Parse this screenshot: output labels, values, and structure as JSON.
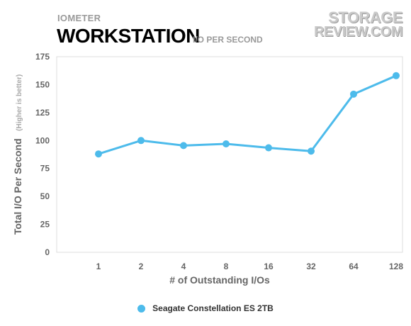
{
  "header": {
    "kicker": "IOMETER",
    "title": "WORKSTATION",
    "subtitle": "I/O PER SECOND"
  },
  "logo": {
    "line1": "STORAGE",
    "line2": "REVIEW.COM"
  },
  "colors": {
    "series": "#4dbbeb",
    "axis_text": "#666666",
    "grid": "#e0e0e0"
  },
  "chart_data": {
    "type": "line",
    "categories": [
      "1",
      "2",
      "4",
      "8",
      "16",
      "32",
      "64",
      "128"
    ],
    "series": [
      {
        "name": "Seagate Constellation ES 2TB",
        "values": [
          88,
          100,
          95.5,
          97,
          93.5,
          90.5,
          141.5,
          158
        ]
      }
    ],
    "xlabel": "# of Outstanding I/Os",
    "ylabel": "Total I/O Per Second",
    "ylabel_note": "(Higher is better)",
    "ylim": [
      0,
      175
    ],
    "yticks": [
      "0",
      "25",
      "50",
      "75",
      "100",
      "125",
      "150",
      "175"
    ],
    "grid": false,
    "legend": "bottom-center"
  }
}
